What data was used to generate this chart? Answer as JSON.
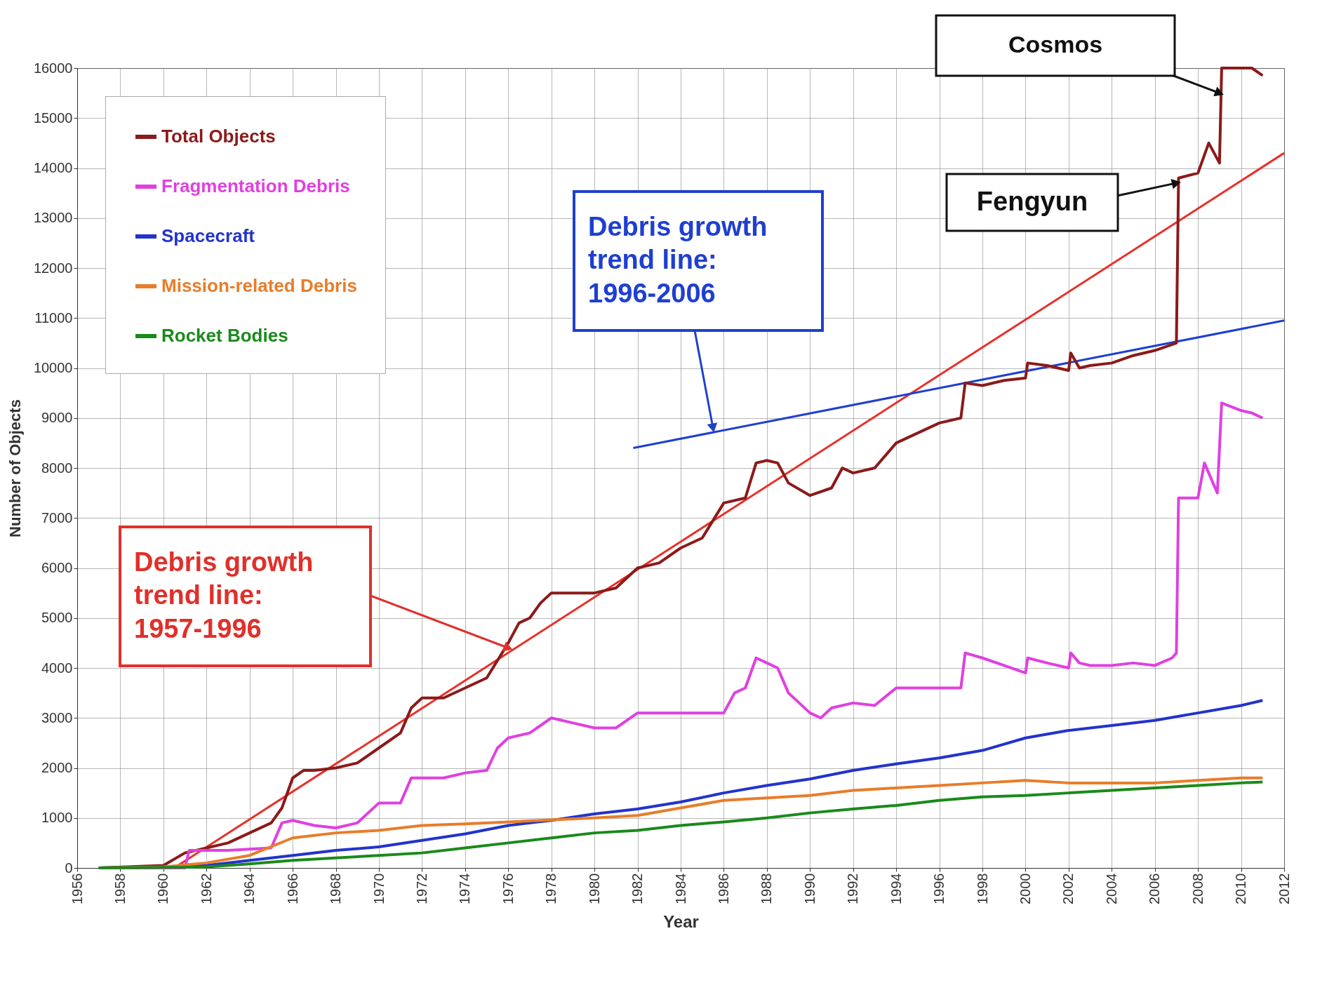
{
  "chart_data": {
    "type": "line",
    "xlabel": "Year",
    "ylabel": "Number of Objects",
    "xlim": [
      1956,
      2012
    ],
    "xticks": [
      1956,
      1958,
      1960,
      1962,
      1964,
      1966,
      1968,
      1970,
      1972,
      1974,
      1976,
      1978,
      1980,
      1982,
      1984,
      1986,
      1988,
      1990,
      1992,
      1994,
      1996,
      1998,
      2000,
      2002,
      2004,
      2006,
      2008,
      2010,
      2012
    ],
    "ylim": [
      0,
      16000
    ],
    "yticks": [
      0,
      1000,
      2000,
      3000,
      4000,
      5000,
      6000,
      7000,
      8000,
      9000,
      10000,
      11000,
      12000,
      13000,
      14000,
      15000,
      16000
    ],
    "grid": true,
    "legend": "top left",
    "line_style": "solid",
    "marker": "none",
    "series": [
      {
        "name": "Total Objects",
        "color": "#8b1a1a",
        "x": [
          1957,
          1960,
          1961,
          1962,
          1963,
          1964,
          1965,
          1965.5,
          1966,
          1966.5,
          1967,
          1968,
          1969,
          1970,
          1971,
          1971.5,
          1972,
          1973,
          1974,
          1975,
          1976,
          1976.5,
          1977,
          1977.5,
          1978,
          1979,
          1980,
          1981,
          1982,
          1983,
          1984,
          1985,
          1986,
          1987,
          1987.5,
          1988,
          1988.5,
          1989,
          1990,
          1991,
          1991.5,
          1992,
          1993,
          1994,
          1995,
          1996,
          1997,
          1997.2,
          1998,
          1999,
          2000,
          2000.1,
          2001,
          2002,
          2002.1,
          2002.5,
          2003,
          2004,
          2005,
          2006,
          2007,
          2007.1,
          2008,
          2008.5,
          2009,
          2009.1,
          2010,
          2010.5,
          2011
        ],
        "values": [
          0,
          50,
          300,
          400,
          500,
          700,
          900,
          1200,
          1800,
          1950,
          1950,
          2000,
          2100,
          2400,
          2700,
          3200,
          3400,
          3400,
          3600,
          3800,
          4500,
          4900,
          5000,
          5300,
          5500,
          5500,
          5500,
          5600,
          6000,
          6100,
          6400,
          6600,
          7300,
          7400,
          8100,
          8150,
          8100,
          7700,
          7450,
          7600,
          8000,
          7900,
          8000,
          8500,
          8700,
          8900,
          9000,
          9700,
          9650,
          9750,
          9800,
          10100,
          10050,
          9950,
          10300,
          10000,
          10050,
          10100,
          10250,
          10350,
          10500,
          13800,
          13900,
          14500,
          14100,
          16000,
          16000,
          16000,
          15850
        ]
      },
      {
        "name": "Fragmentation Debris",
        "color": "#e040e0",
        "x": [
          1957,
          1961,
          1961.2,
          1963,
          1965,
          1965.5,
          1966,
          1967,
          1968,
          1969,
          1970,
          1971,
          1971.5,
          1972,
          1973,
          1974,
          1975,
          1975.5,
          1976,
          1977,
          1978,
          1979,
          1980,
          1981,
          1982,
          1983,
          1984,
          1985,
          1986,
          1986.5,
          1987,
          1987.5,
          1988,
          1988.5,
          1989,
          1990,
          1990.5,
          1991,
          1992,
          1993,
          1994,
          1995,
          1996,
          1997,
          1997.2,
          1998,
          1999,
          2000,
          2000.1,
          2001,
          2002,
          2002.1,
          2002.5,
          2003,
          2004,
          2005,
          2006,
          2006.8,
          2007,
          2007.1,
          2008,
          2008.3,
          2008.9,
          2009.1,
          2010,
          2010.5,
          2011
        ],
        "values": [
          0,
          0,
          350,
          350,
          400,
          900,
          950,
          850,
          800,
          900,
          1300,
          1300,
          1800,
          1800,
          1800,
          1900,
          1950,
          2400,
          2600,
          2700,
          3000,
          2900,
          2800,
          2800,
          3100,
          3100,
          3100,
          3100,
          3100,
          3500,
          3600,
          4200,
          4100,
          4000,
          3500,
          3100,
          3000,
          3200,
          3300,
          3250,
          3600,
          3600,
          3600,
          3600,
          4300,
          4200,
          4050,
          3900,
          4200,
          4100,
          4000,
          4300,
          4100,
          4050,
          4050,
          4100,
          4050,
          4200,
          4300,
          7400,
          7400,
          8100,
          7500,
          9300,
          9150,
          9100,
          9000
        ]
      },
      {
        "name": "Spacecraft",
        "color": "#2233cc",
        "x": [
          1957,
          1960,
          1962,
          1964,
          1966,
          1968,
          1970,
          1972,
          1974,
          1976,
          1978,
          1980,
          1982,
          1984,
          1986,
          1988,
          1990,
          1992,
          1994,
          1996,
          1998,
          2000,
          2002,
          2004,
          2006,
          2008,
          2010,
          2011
        ],
        "values": [
          0,
          20,
          50,
          150,
          250,
          350,
          420,
          550,
          680,
          850,
          950,
          1080,
          1180,
          1320,
          1500,
          1650,
          1780,
          1950,
          2080,
          2200,
          2350,
          2600,
          2750,
          2850,
          2950,
          3100,
          3250,
          3350
        ]
      },
      {
        "name": "Mission-related Debris",
        "color": "#e87d2a",
        "x": [
          1957,
          1960,
          1962,
          1964,
          1966,
          1968,
          1970,
          1972,
          1974,
          1976,
          1978,
          1980,
          1982,
          1984,
          1986,
          1988,
          1990,
          1992,
          1994,
          1996,
          1998,
          2000,
          2002,
          2004,
          2006,
          2008,
          2010,
          2011
        ],
        "values": [
          0,
          20,
          100,
          250,
          600,
          700,
          750,
          850,
          880,
          920,
          960,
          1000,
          1050,
          1200,
          1350,
          1400,
          1450,
          1550,
          1600,
          1650,
          1700,
          1750,
          1700,
          1700,
          1700,
          1750,
          1800,
          1800
        ]
      },
      {
        "name": "Rocket Bodies",
        "color": "#1a8a1a",
        "x": [
          1957,
          1962,
          1964,
          1966,
          1968,
          1970,
          1972,
          1974,
          1976,
          1978,
          1980,
          1982,
          1984,
          1986,
          1988,
          1990,
          1992,
          1994,
          1996,
          1998,
          2000,
          2002,
          2004,
          2006,
          2008,
          2010,
          2011
        ],
        "values": [
          0,
          20,
          80,
          150,
          200,
          250,
          300,
          400,
          500,
          600,
          700,
          750,
          850,
          920,
          1000,
          1100,
          1180,
          1250,
          1350,
          1420,
          1450,
          1500,
          1550,
          1600,
          1650,
          1700,
          1720
        ]
      },
      {
        "type": "line",
        "color": "#e8302a",
        "x": [
          1960.5,
          2012
        ],
        "values": [
          0,
          14300
        ]
      },
      {
        "type": "line",
        "color": "#1f3fd0",
        "x": [
          1981.8,
          2012
        ],
        "values": [
          8400,
          10950
        ]
      }
    ],
    "annotations": [
      {
        "text": "Debris growth trend line: 1957-1996",
        "x": 1976,
        "y": 4400
      },
      {
        "text": "Debris growth trend line: 1996-2006",
        "x": 1985.5,
        "y": 8800
      },
      {
        "text": "Cosmos",
        "x": 2009,
        "y": 15500
      },
      {
        "text": "Fengyun",
        "x": 2007,
        "y": 13700
      }
    ]
  }
}
